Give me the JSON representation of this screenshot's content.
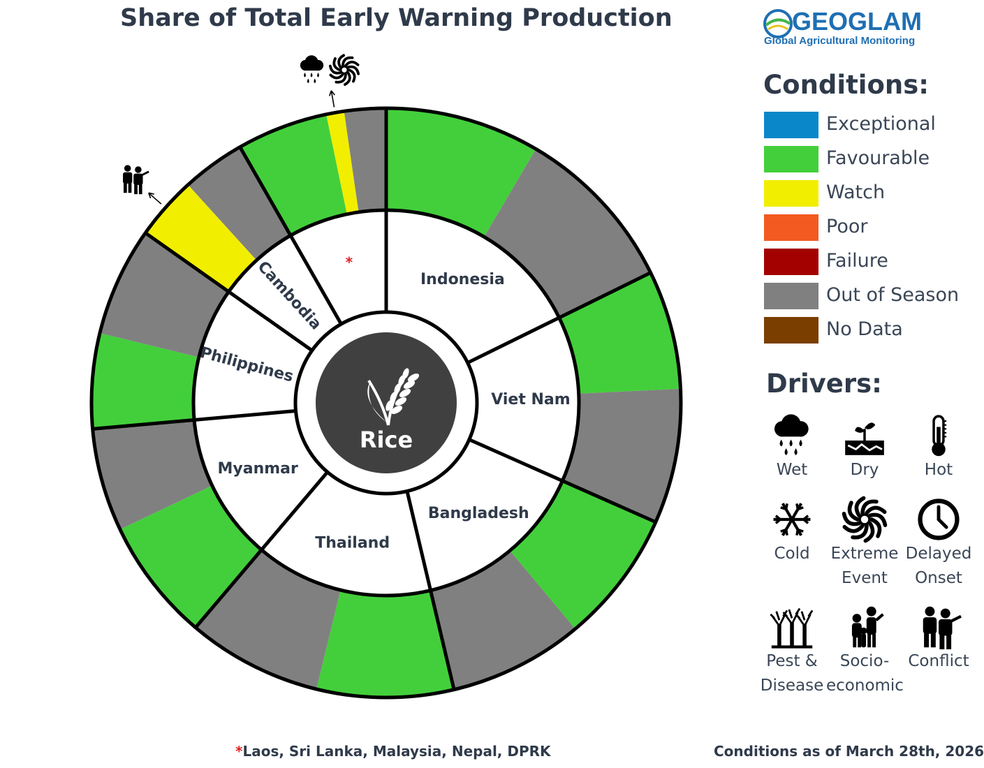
{
  "title": "Share of Total Early Warning Production",
  "logo": {
    "name": "GEOGLAM",
    "subtitle": "Global Agricultural Monitoring"
  },
  "chart_data": {
    "type": "pie",
    "center_label": "Rice",
    "countries": [
      {
        "name": "Indonesia",
        "share": 16.3,
        "segments": [
          {
            "condition": "Favourable",
            "share": 7.8
          },
          {
            "condition": "Out of Season",
            "share": 8.5
          }
        ]
      },
      {
        "name": "Viet Nam",
        "share": 12.8,
        "segments": [
          {
            "condition": "Favourable",
            "share": 6.0
          },
          {
            "condition": "Out of Season",
            "share": 6.8
          }
        ]
      },
      {
        "name": "Bangladesh",
        "share": 13.5,
        "segments": [
          {
            "condition": "Favourable",
            "share": 6.7
          },
          {
            "condition": "Out of Season",
            "share": 6.8
          }
        ]
      },
      {
        "name": "Thailand",
        "share": 13.7,
        "segments": [
          {
            "condition": "Favourable",
            "share": 6.9
          },
          {
            "condition": "Out of Season",
            "share": 6.8
          }
        ]
      },
      {
        "name": "Myanmar",
        "share": 11.4,
        "segments": [
          {
            "condition": "Favourable",
            "share": 6.2
          },
          {
            "condition": "Out of Season",
            "share": 5.2
          }
        ]
      },
      {
        "name": "Philippines",
        "share": 10.3,
        "segments": [
          {
            "condition": "Favourable",
            "share": 4.8
          },
          {
            "condition": "Out of Season",
            "share": 5.5
          }
        ]
      },
      {
        "name": "Cambodia",
        "share": 6.4,
        "segments": [
          {
            "condition": "Watch",
            "share": 3.2,
            "drivers": [
              "Conflict"
            ]
          },
          {
            "condition": "Out of Season",
            "share": 3.2
          }
        ]
      },
      {
        "name": "*",
        "share": 7.6,
        "segments": [
          {
            "condition": "Favourable",
            "share": 4.6
          },
          {
            "condition": "Watch",
            "share": 0.9,
            "drivers": [
              "Wet",
              "Extreme Event"
            ]
          },
          {
            "condition": "Out of Season",
            "share": 2.1
          }
        ]
      }
    ]
  },
  "conditions": {
    "heading": "Conditions:",
    "items": [
      {
        "label": "Exceptional",
        "color": "#0a87c9"
      },
      {
        "label": "Favourable",
        "color": "#43cf3b"
      },
      {
        "label": "Watch",
        "color": "#f2ee00"
      },
      {
        "label": "Poor",
        "color": "#f25a22"
      },
      {
        "label": "Failure",
        "color": "#a30000"
      },
      {
        "label": "Out of Season",
        "color": "#808080"
      },
      {
        "label": "No Data",
        "color": "#7a3e00"
      }
    ]
  },
  "drivers": {
    "heading": "Drivers:",
    "items": [
      {
        "label_lines": [
          "Wet"
        ],
        "icon": "wet-icon"
      },
      {
        "label_lines": [
          "Dry"
        ],
        "icon": "dry-icon"
      },
      {
        "label_lines": [
          "Hot"
        ],
        "icon": "hot-icon"
      },
      {
        "label_lines": [
          "Cold"
        ],
        "icon": "cold-icon"
      },
      {
        "label_lines": [
          "Extreme",
          "Event"
        ],
        "icon": "extreme-event-icon"
      },
      {
        "label_lines": [
          "Delayed",
          "Onset"
        ],
        "icon": "delayed-onset-icon"
      },
      {
        "label_lines": [
          "Pest &",
          "Disease"
        ],
        "icon": "pest-disease-icon"
      },
      {
        "label_lines": [
          "Socio-",
          "economic"
        ],
        "icon": "socio-economic-icon"
      },
      {
        "label_lines": [
          "Conflict"
        ],
        "icon": "conflict-icon"
      }
    ]
  },
  "footnote": {
    "marker": "*",
    "text": "Laos, Sri Lanka, Malaysia, Nepal, DPRK"
  },
  "as_of": "Conditions as of March 28th, 2026"
}
